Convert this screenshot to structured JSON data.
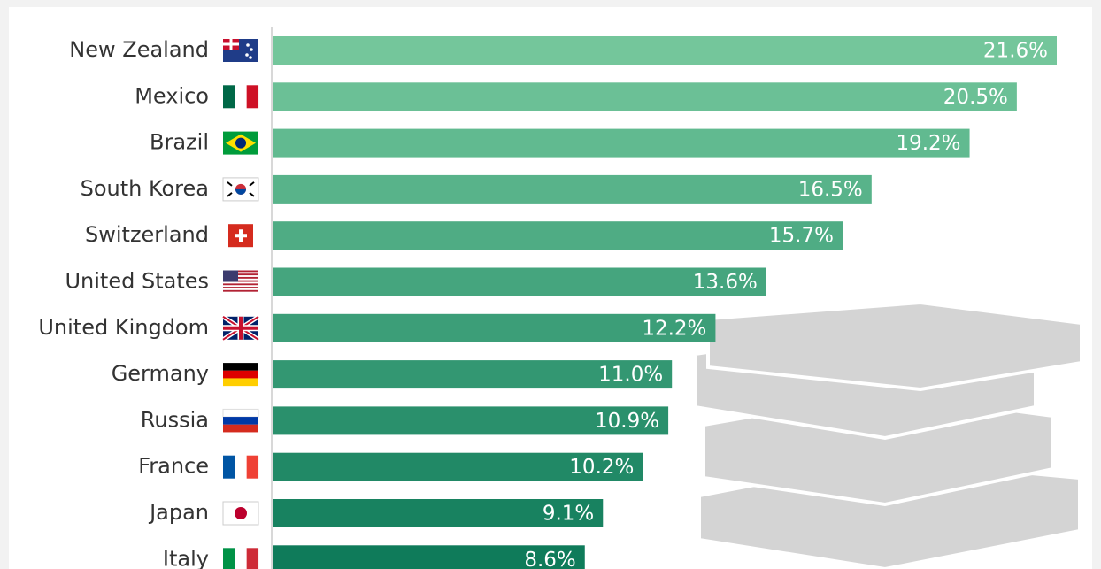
{
  "chart_data": {
    "type": "bar",
    "orientation": "horizontal",
    "categories": [
      "New Zealand",
      "Mexico",
      "Brazil",
      "South Korea",
      "Switzerland",
      "United States",
      "United Kingdom",
      "Germany",
      "Russia",
      "France",
      "Japan",
      "Italy"
    ],
    "values": [
      21.6,
      20.5,
      19.2,
      16.5,
      15.7,
      13.6,
      12.2,
      11.0,
      10.9,
      10.2,
      9.1,
      8.6
    ],
    "value_labels": [
      "21.6%",
      "20.5%",
      "19.2%",
      "16.5%",
      "15.7%",
      "13.6%",
      "12.2%",
      "11.0%",
      "10.9%",
      "10.2%",
      "9.1%",
      "8.6%"
    ],
    "colors": [
      "#74c69b",
      "#6bc096",
      "#61ba90",
      "#58b38a",
      "#4fac84",
      "#45a57e",
      "#3c9e78",
      "#339772",
      "#2a906c",
      "#218966",
      "#188260",
      "#0f7b5a"
    ]
  }
}
